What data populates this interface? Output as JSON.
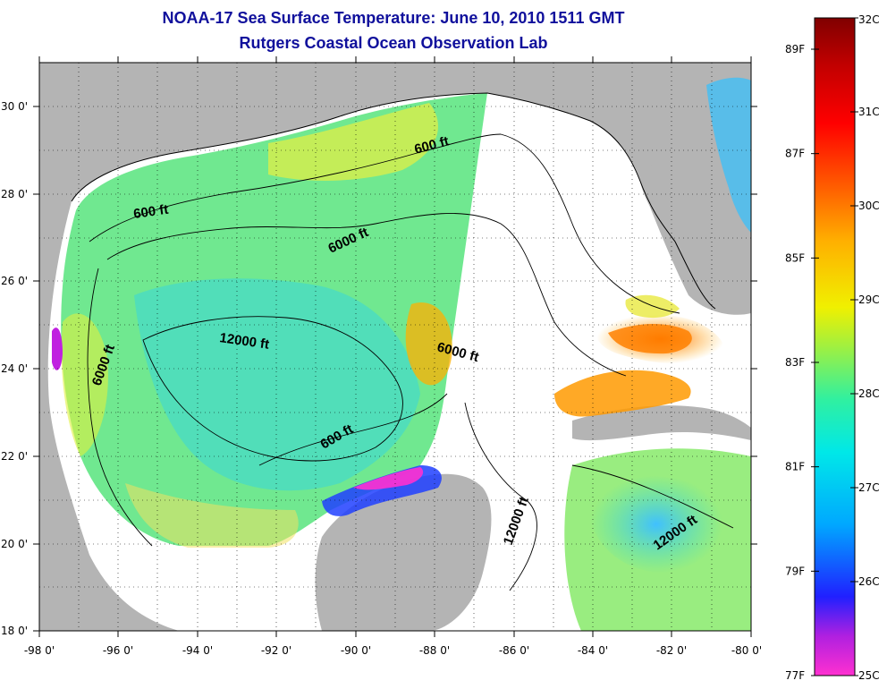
{
  "title": "NOAA-17 Sea Surface Temperature:  June 10, 2010 1511 GMT",
  "subtitle": "Rutgers Coastal Ocean Observation Lab",
  "axes": {
    "x_ticks": [
      "-98 0'",
      "-96 0'",
      "-94 0'",
      "-92 0'",
      "-90 0'",
      "-88 0'",
      "-86 0'",
      "-84 0'",
      "-82 0'",
      "-80 0'"
    ],
    "y_ticks": [
      "30 0'",
      "28 0'",
      "26 0'",
      "24 0'",
      "22 0'",
      "20 0'",
      "18 0'"
    ]
  },
  "map_extent": {
    "lon": [
      -98,
      -80
    ],
    "lat": [
      18,
      31
    ]
  },
  "contour_labels": [
    "600 ft",
    "600 ft",
    "6000 ft",
    "12000 ft",
    "6000 ft",
    "6000 ft",
    "600 ft",
    "12000 ft",
    "12000 ft"
  ],
  "colorbar": {
    "celsius_labels": [
      "32C",
      "31C",
      "30C",
      "29C",
      "28C",
      "27C",
      "26C",
      "25C"
    ],
    "fahrenheit_labels": [
      "89F",
      "87F",
      "85F",
      "83F",
      "81F",
      "79F",
      "77F"
    ],
    "range_c": [
      25,
      32
    ],
    "range_f": [
      77,
      89.6
    ],
    "colors": [
      "#ff30d0",
      "#b020e0",
      "#2020ff",
      "#00a8ff",
      "#00e8e8",
      "#30f0a0",
      "#a0f040",
      "#f0f000",
      "#ffb000",
      "#ff6000",
      "#ff0000",
      "#c00000",
      "#800000"
    ]
  },
  "colors": {
    "land": "#b4b4b4",
    "no_data": "#ffffff",
    "title": "#10109c"
  }
}
